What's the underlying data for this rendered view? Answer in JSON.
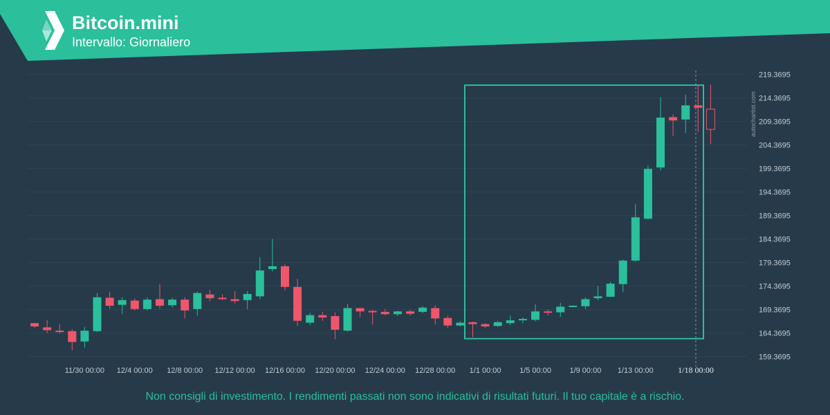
{
  "header": {
    "title": "Bitcoin.mini",
    "subtitle": "Intervallo: Giornaliero",
    "logo_icon": "autochartist-logo-icon"
  },
  "watermark": "autochartist.com",
  "disclaimer": "Non consigli di investimento. I rendimenti passati non sono indicativi di risultati futuri. Il tuo capitale è a rischio.",
  "colors": {
    "background": "#263a4a",
    "header": "#2bbf9c",
    "up": "#2bbf9c",
    "down": "#f0566b",
    "pattern_box": "#2bbf9c",
    "axis_text": "#c3ccd3",
    "disclaimer": "#2bbf9c"
  },
  "chart_data": {
    "type": "candlestick",
    "x_ticks": [
      "11/30 00:00",
      "12/4 00:00",
      "12/8 00:00",
      "12/12 00:00",
      "12/16 00:00",
      "12/20 00:00",
      "12/24 00:00",
      "12/28 00:00",
      "1/1 00:00",
      "1/5 00:00",
      "1/9 00:00",
      "1/13 00:00",
      "1/18 00:00"
    ],
    "highlight_x_tick": "1/18 00:00",
    "y_ticks": [
      "219.3695",
      "214.3695",
      "209.3695",
      "204.3695",
      "199.3695",
      "194.3695",
      "189.3695",
      "184.3695",
      "179.3695",
      "174.3695",
      "169.3695",
      "164.3695",
      "159.3695"
    ],
    "ylim": [
      158.0,
      220.5
    ],
    "candles": [
      {
        "o": 166.5,
        "h": 166.6,
        "l": 165.5,
        "c": 165.8
      },
      {
        "o": 165.6,
        "h": 167.2,
        "l": 164.4,
        "c": 165.0
      },
      {
        "o": 164.9,
        "h": 166.3,
        "l": 164.3,
        "c": 164.7
      },
      {
        "o": 164.8,
        "h": 165.2,
        "l": 160.7,
        "c": 162.5
      },
      {
        "o": 162.6,
        "h": 165.7,
        "l": 161.3,
        "c": 164.9
      },
      {
        "o": 164.8,
        "h": 172.9,
        "l": 164.6,
        "c": 172.0
      },
      {
        "o": 171.9,
        "h": 173.2,
        "l": 169.5,
        "c": 170.2
      },
      {
        "o": 170.4,
        "h": 172.0,
        "l": 168.4,
        "c": 171.4
      },
      {
        "o": 171.3,
        "h": 171.8,
        "l": 169.2,
        "c": 169.5
      },
      {
        "o": 169.5,
        "h": 172.0,
        "l": 169.2,
        "c": 171.5
      },
      {
        "o": 171.6,
        "h": 174.8,
        "l": 169.6,
        "c": 170.2
      },
      {
        "o": 170.3,
        "h": 171.9,
        "l": 169.8,
        "c": 171.5
      },
      {
        "o": 171.5,
        "h": 172.0,
        "l": 167.5,
        "c": 169.2
      },
      {
        "o": 169.5,
        "h": 173.2,
        "l": 168.1,
        "c": 172.9
      },
      {
        "o": 172.6,
        "h": 173.6,
        "l": 171.2,
        "c": 171.8
      },
      {
        "o": 171.9,
        "h": 172.6,
        "l": 171.4,
        "c": 171.6
      },
      {
        "o": 171.6,
        "h": 173.3,
        "l": 170.7,
        "c": 171.2
      },
      {
        "o": 171.4,
        "h": 173.3,
        "l": 169.5,
        "c": 172.7
      },
      {
        "o": 172.2,
        "h": 180.5,
        "l": 171.6,
        "c": 177.7
      },
      {
        "o": 178.0,
        "h": 184.4,
        "l": 177.5,
        "c": 178.6
      },
      {
        "o": 178.6,
        "h": 179.0,
        "l": 173.5,
        "c": 174.2
      },
      {
        "o": 174.2,
        "h": 175.9,
        "l": 165.9,
        "c": 167.0
      },
      {
        "o": 166.6,
        "h": 168.7,
        "l": 166.1,
        "c": 168.2
      },
      {
        "o": 168.2,
        "h": 168.9,
        "l": 167.0,
        "c": 167.7
      },
      {
        "o": 168.0,
        "h": 168.8,
        "l": 163.1,
        "c": 165.1
      },
      {
        "o": 164.9,
        "h": 170.6,
        "l": 164.7,
        "c": 169.7
      },
      {
        "o": 169.7,
        "h": 169.8,
        "l": 167.8,
        "c": 169.0
      },
      {
        "o": 169.1,
        "h": 169.3,
        "l": 166.2,
        "c": 168.8
      },
      {
        "o": 168.9,
        "h": 169.5,
        "l": 168.2,
        "c": 168.4
      },
      {
        "o": 168.4,
        "h": 169.1,
        "l": 168.0,
        "c": 169.0
      },
      {
        "o": 169.0,
        "h": 169.3,
        "l": 168.1,
        "c": 168.5
      },
      {
        "o": 168.9,
        "h": 170.1,
        "l": 168.6,
        "c": 169.8
      },
      {
        "o": 169.7,
        "h": 170.3,
        "l": 166.2,
        "c": 167.5
      },
      {
        "o": 167.6,
        "h": 168.1,
        "l": 165.5,
        "c": 166.0
      },
      {
        "o": 166.0,
        "h": 166.9,
        "l": 165.8,
        "c": 166.6
      },
      {
        "o": 166.7,
        "h": 166.8,
        "l": 163.5,
        "c": 166.3
      },
      {
        "o": 166.3,
        "h": 166.5,
        "l": 165.5,
        "c": 165.8
      },
      {
        "o": 165.9,
        "h": 167.0,
        "l": 165.7,
        "c": 166.7
      },
      {
        "o": 166.5,
        "h": 168.1,
        "l": 166.1,
        "c": 167.1
      },
      {
        "o": 167.1,
        "h": 167.7,
        "l": 166.5,
        "c": 167.4
      },
      {
        "o": 167.2,
        "h": 170.5,
        "l": 166.9,
        "c": 169.0
      },
      {
        "o": 169.0,
        "h": 169.4,
        "l": 168.1,
        "c": 168.9
      },
      {
        "o": 168.8,
        "h": 170.8,
        "l": 167.8,
        "c": 170.0
      },
      {
        "o": 170.1,
        "h": 170.3,
        "l": 170.0,
        "c": 170.2
      },
      {
        "o": 170.1,
        "h": 172.0,
        "l": 169.5,
        "c": 171.6
      },
      {
        "o": 171.8,
        "h": 174.4,
        "l": 171.4,
        "c": 172.2
      },
      {
        "o": 172.1,
        "h": 175.3,
        "l": 172.1,
        "c": 174.9
      },
      {
        "o": 174.8,
        "h": 180.0,
        "l": 173.1,
        "c": 179.8
      },
      {
        "o": 179.8,
        "h": 191.8,
        "l": 179.6,
        "c": 189.0
      },
      {
        "o": 188.7,
        "h": 200.0,
        "l": 188.5,
        "c": 199.3
      },
      {
        "o": 199.6,
        "h": 214.5,
        "l": 199.0,
        "c": 210.2
      },
      {
        "o": 210.3,
        "h": 210.9,
        "l": 206.3,
        "c": 209.6
      },
      {
        "o": 209.8,
        "h": 215.1,
        "l": 206.9,
        "c": 212.8
      },
      {
        "o": 212.8,
        "h": 217.2,
        "l": 207.1,
        "c": 212.3
      },
      {
        "o": 212.0,
        "h": 217.2,
        "l": 204.6,
        "c": 207.7
      }
    ],
    "pattern_box": {
      "x_start": "1/1 00:00",
      "x_end": "1/18 00:00",
      "y_low": 163.2,
      "y_high": 217.1
    }
  }
}
